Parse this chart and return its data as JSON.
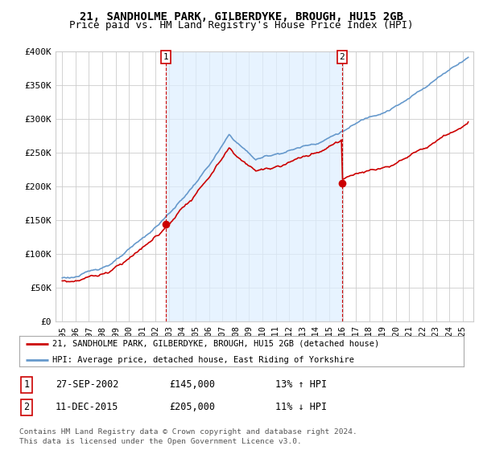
{
  "title": "21, SANDHOLME PARK, GILBERDYKE, BROUGH, HU15 2GB",
  "subtitle": "Price paid vs. HM Land Registry's House Price Index (HPI)",
  "ylim": [
    0,
    400000
  ],
  "yticks": [
    0,
    50000,
    100000,
    150000,
    200000,
    250000,
    300000,
    350000,
    400000
  ],
  "ytick_labels": [
    "£0",
    "£50K",
    "£100K",
    "£150K",
    "£200K",
    "£250K",
    "£300K",
    "£350K",
    "£400K"
  ],
  "sale1_date_num": 2002.75,
  "sale1_price": 145000,
  "sale1_label": "1",
  "sale1_date_str": "27-SEP-2002",
  "sale1_pct": "13% ↑ HPI",
  "sale2_date_num": 2015.95,
  "sale2_price": 205000,
  "sale2_label": "2",
  "sale2_date_str": "11-DEC-2015",
  "sale2_pct": "11% ↓ HPI",
  "legend_line1": "21, SANDHOLME PARK, GILBERDYKE, BROUGH, HU15 2GB (detached house)",
  "legend_line2": "HPI: Average price, detached house, East Riding of Yorkshire",
  "footer1": "Contains HM Land Registry data © Crown copyright and database right 2024.",
  "footer2": "This data is licensed under the Open Government Licence v3.0.",
  "red_color": "#cc0000",
  "blue_color": "#6699cc",
  "shade_color": "#ddeeff",
  "bg_color": "#ffffff",
  "grid_color": "#cccccc",
  "title_fontsize": 10,
  "subtitle_fontsize": 9
}
